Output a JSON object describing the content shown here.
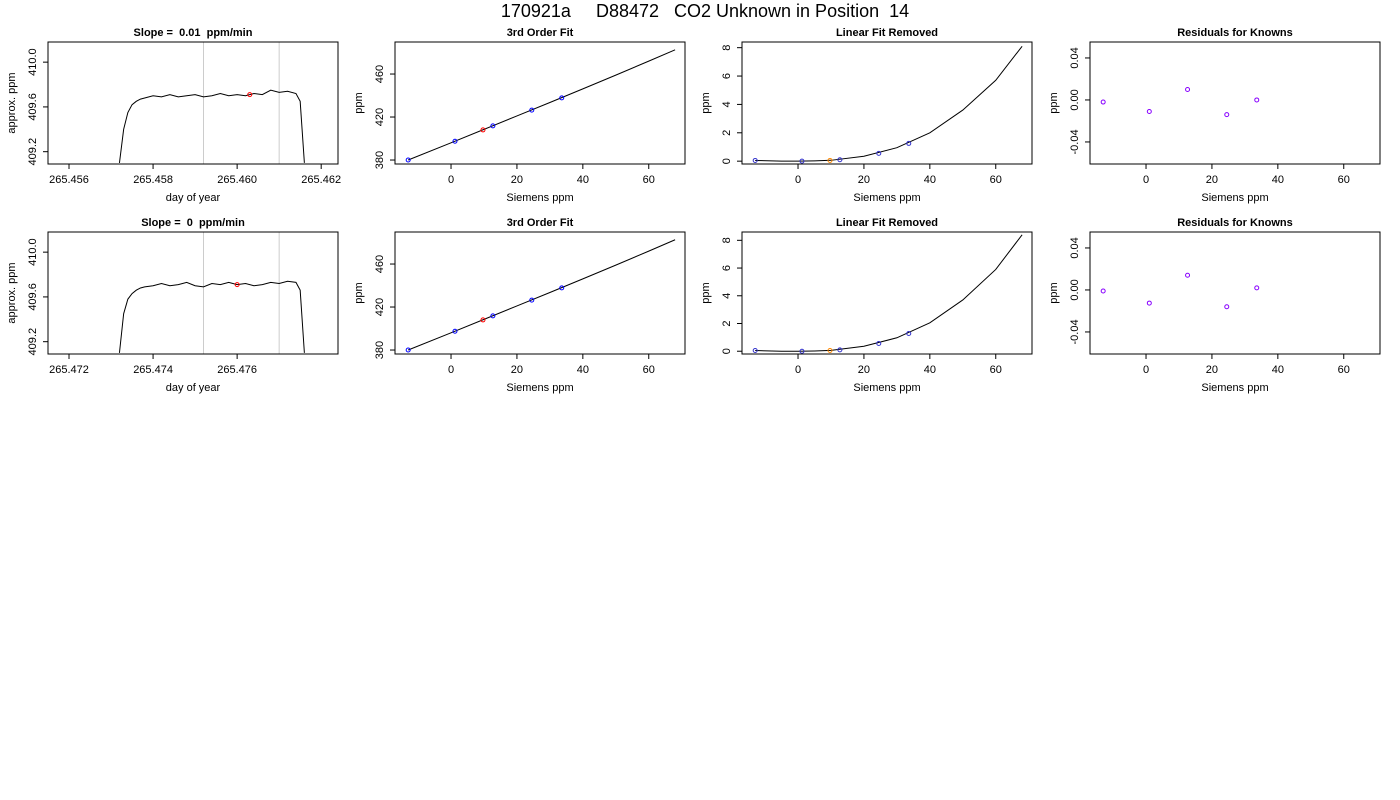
{
  "title": "170921a     D88472   CO2 Unknown in Position  14",
  "chart_data": [
    {
      "type": "line",
      "title": "Slope =  0.01  ppm/min",
      "xlabel": "day of year",
      "ylabel": "approx. ppm",
      "xlim": [
        265.4555,
        265.4624
      ],
      "ylim": [
        409.09,
        410.18
      ],
      "xticks": [
        265.456,
        265.458,
        {
          "value": 265.46,
          "label": "265.460"
        },
        265.462
      ],
      "yticks": [
        409.2,
        409.6,
        {
          "value": 410,
          "label": "410.0"
        }
      ],
      "vlines": {
        "color": "#cccccc",
        "x": [
          265.4592,
          265.461
        ]
      },
      "series": [
        {
          "style": "line",
          "color": "#000000",
          "x": [
            265.4572,
            265.4573,
            265.4574,
            265.4575,
            265.4576,
            265.4577,
            265.4578,
            265.458,
            265.4582,
            265.4584,
            265.4586,
            265.4588,
            265.459,
            265.4592,
            265.4594,
            265.4596,
            265.4598,
            265.46,
            265.4602,
            265.4604,
            265.4606,
            265.4608,
            265.461,
            265.4612,
            265.4614,
            265.4615,
            265.4616
          ],
          "values": [
            409.1,
            409.4,
            409.55,
            409.62,
            409.65,
            409.67,
            409.68,
            409.7,
            409.69,
            409.71,
            409.69,
            409.7,
            409.71,
            409.69,
            409.7,
            409.72,
            409.7,
            409.71,
            409.7,
            409.72,
            409.71,
            409.75,
            409.73,
            409.74,
            409.72,
            409.65,
            409.1
          ]
        },
        {
          "style": "points",
          "color": "#ff0000",
          "x": [
            265.4603
          ],
          "values": [
            409.71
          ]
        }
      ]
    },
    {
      "type": "scatter",
      "title": "3rd Order Fit",
      "xlabel": "Siemens ppm",
      "ylabel": "ppm",
      "xlim": [
        -17,
        71
      ],
      "ylim": [
        376.3,
        489.8
      ],
      "xticks": [
        0,
        20,
        40,
        60
      ],
      "yticks": [
        380,
        420,
        460
      ],
      "series": [
        {
          "style": "line",
          "color": "#000000",
          "x": [
            -13,
            0,
            10,
            20,
            30,
            40,
            50,
            60,
            68
          ],
          "values": [
            380,
            396,
            408.5,
            421,
            433.5,
            446.2,
            459,
            472,
            482.5
          ]
        },
        {
          "style": "points",
          "color": "#0000ff",
          "x": [
            -13,
            1.2,
            12.7,
            24.5,
            33.6
          ],
          "values": [
            380,
            397.5,
            411.8,
            426.4,
            437.8
          ]
        },
        {
          "style": "points",
          "color": "#ff0000",
          "x": [
            9.7
          ],
          "values": [
            408
          ]
        }
      ]
    },
    {
      "type": "scatter",
      "title": "Linear Fit Removed",
      "xlabel": "Siemens ppm",
      "ylabel": "ppm",
      "xlim": [
        -17,
        71
      ],
      "ylim": [
        -0.2,
        8.4
      ],
      "xticks": [
        0,
        20,
        40,
        60
      ],
      "yticks": [
        0,
        2,
        4,
        6,
        8
      ],
      "series": [
        {
          "style": "line",
          "color": "#000000",
          "x": [
            -13,
            -5,
            0,
            5,
            10,
            20,
            30,
            40,
            50,
            60,
            68
          ],
          "values": [
            0.05,
            0,
            0,
            0.02,
            0.06,
            0.35,
            0.95,
            2,
            3.6,
            5.7,
            8.1
          ]
        },
        {
          "style": "points",
          "color": "#3333cc",
          "x": [
            -13,
            1.2,
            12.7,
            24.5,
            33.6
          ],
          "values": [
            0.05,
            0,
            0.1,
            0.55,
            1.25
          ]
        },
        {
          "style": "points",
          "color": "#ff8800",
          "x": [
            9.7
          ],
          "values": [
            0.05
          ]
        }
      ]
    },
    {
      "type": "scatter",
      "title": "Residuals for Knowns",
      "xlabel": "Siemens ppm",
      "ylabel": "ppm",
      "xlim": [
        -17,
        71
      ],
      "ylim": [
        -0.061,
        0.0552
      ],
      "xticks": [
        0,
        20,
        40,
        60
      ],
      "yticks": [
        -0.04,
        {
          "value": 0,
          "label": "0.00"
        },
        0.04
      ],
      "series": [
        {
          "style": "points",
          "color": "#8800ff",
          "x": [
            -13,
            1,
            12.6,
            24.5,
            33.6
          ],
          "values": [
            -0.002,
            -0.011,
            0.01,
            -0.014,
            0
          ]
        }
      ]
    },
    {
      "type": "line",
      "title": "Slope =  0  ppm/min",
      "xlabel": "day of year",
      "ylabel": "approx. ppm",
      "xlim": [
        265.4715,
        265.4784
      ],
      "ylim": [
        409.09,
        410.18
      ],
      "xticks": [
        265.472,
        265.474,
        265.476
      ],
      "yticks": [
        409.2,
        409.6,
        {
          "value": 410,
          "label": "410.0"
        }
      ],
      "vlines": {
        "color": "#cccccc",
        "x": [
          265.4752,
          265.477
        ]
      },
      "series": [
        {
          "style": "line",
          "color": "#000000",
          "x": [
            265.4732,
            265.4733,
            265.4734,
            265.4735,
            265.4736,
            265.4737,
            265.4738,
            265.474,
            265.4742,
            265.4744,
            265.4746,
            265.4748,
            265.475,
            265.4752,
            265.4754,
            265.4756,
            265.4758,
            265.476,
            265.4762,
            265.4764,
            265.4766,
            265.4768,
            265.477,
            265.4772,
            265.4774,
            265.4775,
            265.4776
          ],
          "values": [
            409.1,
            409.45,
            409.58,
            409.63,
            409.66,
            409.68,
            409.69,
            409.7,
            409.72,
            409.7,
            409.71,
            409.73,
            409.7,
            409.69,
            409.72,
            409.71,
            409.73,
            409.71,
            409.72,
            409.7,
            409.71,
            409.73,
            409.72,
            409.74,
            409.73,
            409.66,
            409.1
          ]
        },
        {
          "style": "points",
          "color": "#ff0000",
          "x": [
            265.476
          ],
          "values": [
            409.71
          ]
        }
      ]
    },
    {
      "type": "scatter",
      "title": "3rd Order Fit",
      "xlabel": "Siemens ppm",
      "ylabel": "ppm",
      "xlim": [
        -17,
        71
      ],
      "ylim": [
        376.3,
        489.8
      ],
      "xticks": [
        0,
        20,
        40,
        60
      ],
      "yticks": [
        380,
        420,
        460
      ],
      "series": [
        {
          "style": "line",
          "color": "#000000",
          "x": [
            -13,
            0,
            10,
            20,
            30,
            40,
            50,
            60,
            68
          ],
          "values": [
            380,
            396,
            408.5,
            421,
            433.5,
            446.2,
            459,
            472,
            482.6
          ]
        },
        {
          "style": "points",
          "color": "#0000ff",
          "x": [
            -13,
            1.2,
            12.7,
            24.5,
            33.6
          ],
          "values": [
            380,
            397.5,
            411.8,
            426.4,
            437.8
          ]
        },
        {
          "style": "points",
          "color": "#ff0000",
          "x": [
            9.7
          ],
          "values": [
            408
          ]
        }
      ]
    },
    {
      "type": "scatter",
      "title": "Linear Fit Removed",
      "xlabel": "Siemens ppm",
      "ylabel": "ppm",
      "xlim": [
        -17,
        71
      ],
      "ylim": [
        -0.2,
        8.6
      ],
      "xticks": [
        0,
        20,
        40,
        60
      ],
      "yticks": [
        0,
        2,
        4,
        6,
        8
      ],
      "series": [
        {
          "style": "line",
          "color": "#000000",
          "x": [
            -13,
            -5,
            0,
            5,
            10,
            20,
            30,
            40,
            50,
            60,
            68
          ],
          "values": [
            0.05,
            0,
            0,
            0.02,
            0.06,
            0.36,
            0.97,
            2.05,
            3.7,
            5.9,
            8.4
          ]
        },
        {
          "style": "points",
          "color": "#3333cc",
          "x": [
            -13,
            1.2,
            12.7,
            24.5,
            33.6
          ],
          "values": [
            0.05,
            0,
            0.1,
            0.56,
            1.28
          ]
        },
        {
          "style": "points",
          "color": "#ff8800",
          "x": [
            9.7
          ],
          "values": [
            0.05
          ]
        }
      ]
    },
    {
      "type": "scatter",
      "title": "Residuals for Knowns",
      "xlabel": "Siemens ppm",
      "ylabel": "ppm",
      "xlim": [
        -17,
        71
      ],
      "ylim": [
        -0.061,
        0.0552
      ],
      "xticks": [
        0,
        20,
        40,
        60
      ],
      "yticks": [
        -0.04,
        {
          "value": 0,
          "label": "0.00"
        },
        0.04
      ],
      "series": [
        {
          "style": "points",
          "color": "#8800ff",
          "x": [
            -13,
            1,
            12.6,
            24.5,
            33.6
          ],
          "values": [
            -0.001,
            -0.0125,
            0.014,
            -0.016,
            0.002
          ]
        }
      ]
    }
  ]
}
